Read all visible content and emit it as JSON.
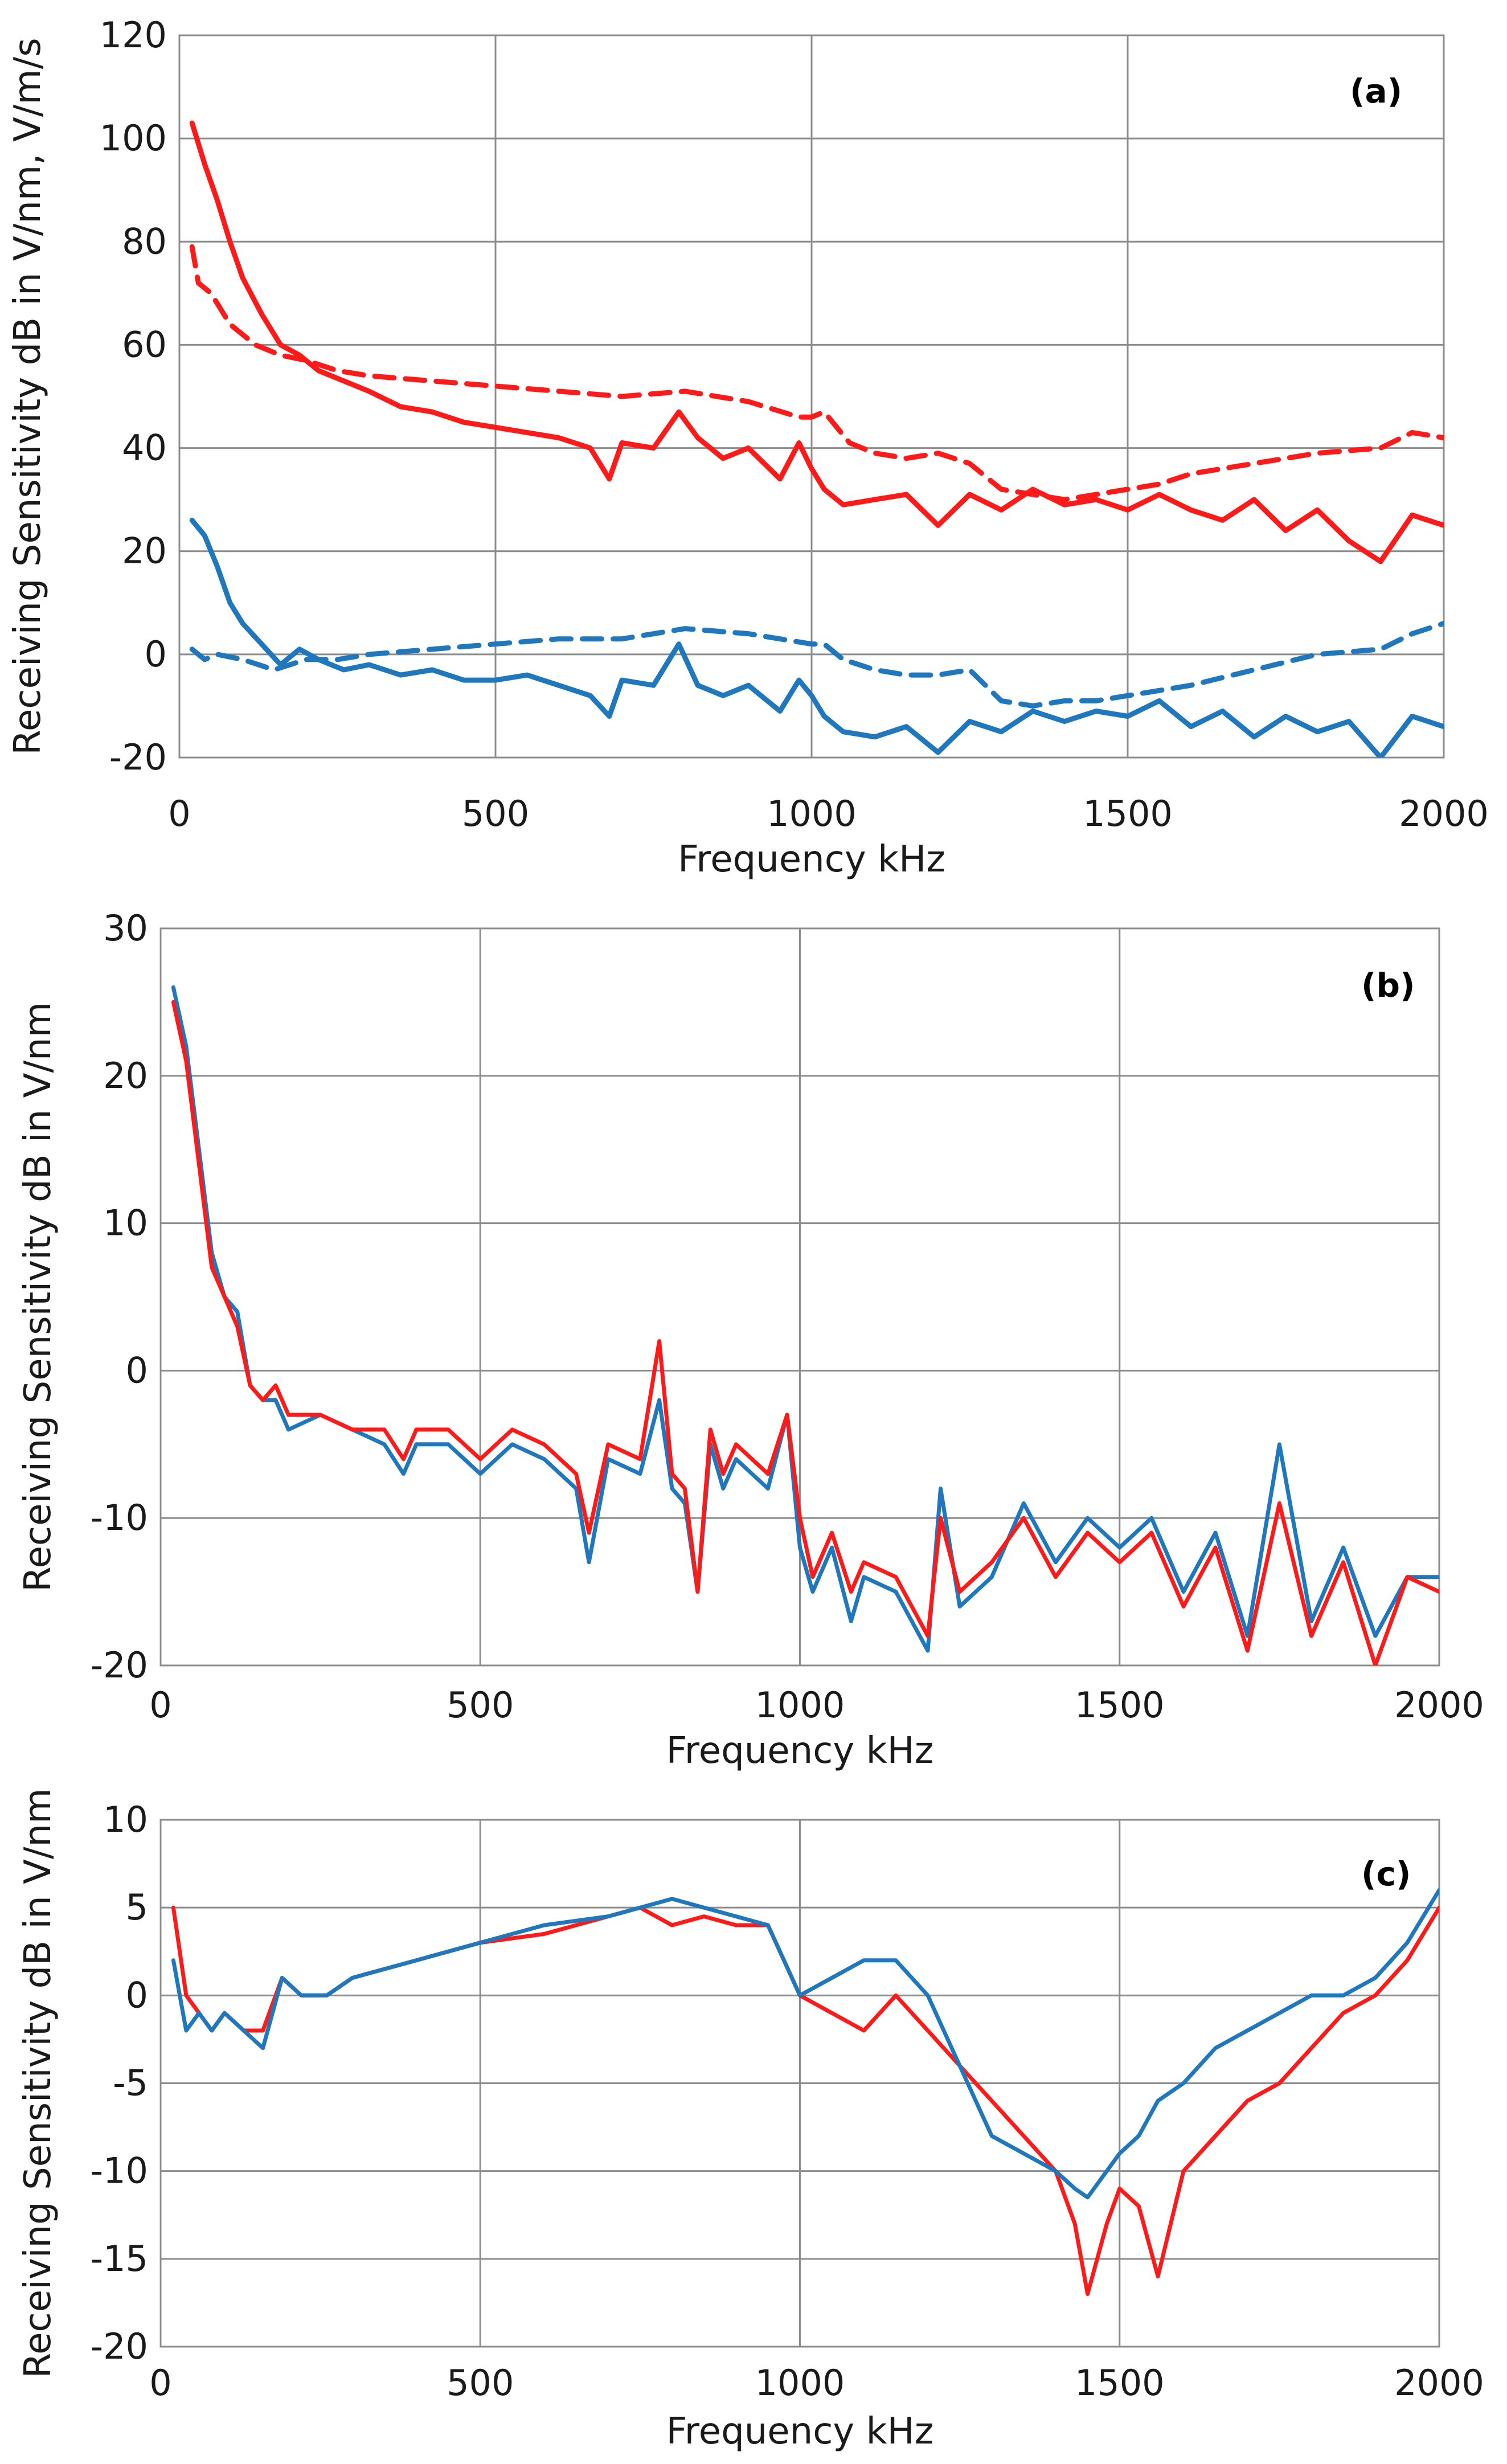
{
  "chart_data": [
    {
      "type": "line",
      "panel_tag": "(a)",
      "xlabel": "Frequency  kHz",
      "ylabel": "Receiving Sensitivity  dB in V/nm, V/m/s",
      "xlim": [
        0,
        2000
      ],
      "ylim": [
        -20,
        120
      ],
      "xticks": [
        0,
        500,
        1000,
        1500,
        2000
      ],
      "yticks": [
        -20,
        0,
        20,
        40,
        60,
        80,
        100,
        120
      ],
      "grid": true,
      "series": [
        {
          "name": "red solid",
          "color": "#ff1a1a",
          "style": "solid",
          "x": [
            20,
            40,
            60,
            80,
            100,
            130,
            160,
            190,
            220,
            260,
            300,
            350,
            400,
            450,
            500,
            550,
            600,
            650,
            680,
            700,
            750,
            790,
            820,
            860,
            900,
            950,
            980,
            1000,
            1020,
            1050,
            1100,
            1150,
            1200,
            1250,
            1300,
            1350,
            1400,
            1450,
            1500,
            1550,
            1600,
            1650,
            1700,
            1750,
            1800,
            1850,
            1900,
            1950,
            2000
          ],
          "y": [
            103,
            95,
            88,
            80,
            73,
            66,
            60,
            58,
            55,
            53,
            51,
            48,
            47,
            45,
            44,
            43,
            42,
            40,
            34,
            41,
            40,
            47,
            42,
            38,
            40,
            34,
            41,
            36,
            32,
            29,
            30,
            31,
            25,
            31,
            28,
            32,
            29,
            30,
            28,
            31,
            28,
            26,
            30,
            24,
            28,
            22,
            18,
            27,
            25
          ]
        },
        {
          "name": "red dashed",
          "color": "#ff1a1a",
          "style": "dashed",
          "x": [
            20,
            30,
            50,
            80,
            120,
            160,
            200,
            250,
            300,
            400,
            500,
            600,
            700,
            800,
            900,
            980,
            1000,
            1020,
            1060,
            1100,
            1150,
            1200,
            1250,
            1300,
            1400,
            1450,
            1500,
            1550,
            1600,
            1700,
            1800,
            1900,
            1950,
            2000
          ],
          "y": [
            79,
            72,
            70,
            64,
            60,
            58,
            57,
            55,
            54,
            53,
            52,
            51,
            50,
            51,
            49,
            46,
            46,
            47,
            41,
            39,
            38,
            39,
            37,
            32,
            30,
            31,
            32,
            33,
            35,
            37,
            39,
            40,
            43,
            42
          ]
        },
        {
          "name": "blue solid",
          "color": "#1f77bd",
          "style": "solid",
          "x": [
            20,
            40,
            60,
            80,
            100,
            130,
            160,
            190,
            220,
            260,
            300,
            350,
            400,
            450,
            500,
            550,
            600,
            650,
            680,
            700,
            750,
            790,
            820,
            860,
            900,
            950,
            980,
            1000,
            1020,
            1050,
            1100,
            1150,
            1200,
            1250,
            1300,
            1350,
            1400,
            1450,
            1500,
            1550,
            1600,
            1650,
            1700,
            1750,
            1800,
            1850,
            1900,
            1950,
            2000
          ],
          "y": [
            26,
            23,
            17,
            10,
            6,
            2,
            -2,
            1,
            -1,
            -3,
            -2,
            -4,
            -3,
            -5,
            -5,
            -4,
            -6,
            -8,
            -12,
            -5,
            -6,
            2,
            -6,
            -8,
            -6,
            -11,
            -5,
            -8,
            -12,
            -15,
            -16,
            -14,
            -19,
            -13,
            -15,
            -11,
            -13,
            -11,
            -12,
            -9,
            -14,
            -11,
            -16,
            -12,
            -15,
            -13,
            -20,
            -12,
            -14
          ]
        },
        {
          "name": "blue dashed",
          "color": "#1f77bd",
          "style": "dashed",
          "x": [
            20,
            40,
            60,
            100,
            150,
            200,
            250,
            300,
            400,
            500,
            600,
            700,
            800,
            900,
            1000,
            1020,
            1050,
            1100,
            1150,
            1200,
            1250,
            1300,
            1350,
            1400,
            1450,
            1500,
            1550,
            1600,
            1700,
            1800,
            1900,
            1950,
            2000
          ],
          "y": [
            1,
            -1,
            0,
            -1,
            -3,
            -1,
            -1,
            0,
            1,
            2,
            3,
            3,
            5,
            4,
            2,
            2,
            -1,
            -3,
            -4,
            -4,
            -3,
            -9,
            -10,
            -9,
            -9,
            -8,
            -7,
            -6,
            -3,
            0,
            1,
            4,
            6
          ]
        }
      ]
    },
    {
      "type": "line",
      "panel_tag": "(b)",
      "xlabel": "Frequency  kHz",
      "ylabel": "Receiving Sensitivity  dB in V/nm",
      "xlim": [
        0,
        2000
      ],
      "ylim": [
        -20,
        30
      ],
      "xticks": [
        0,
        500,
        1000,
        1500,
        2000
      ],
      "yticks": [
        -20,
        -10,
        0,
        10,
        20,
        30
      ],
      "grid": true,
      "series": [
        {
          "name": "blue",
          "color": "#1f77bd",
          "style": "solid",
          "x": [
            20,
            40,
            60,
            80,
            100,
            120,
            140,
            160,
            180,
            200,
            250,
            300,
            350,
            380,
            400,
            450,
            500,
            550,
            600,
            650,
            670,
            700,
            750,
            780,
            800,
            820,
            840,
            860,
            880,
            900,
            950,
            980,
            1000,
            1020,
            1050,
            1080,
            1100,
            1150,
            1200,
            1220,
            1250,
            1300,
            1350,
            1400,
            1450,
            1500,
            1550,
            1600,
            1650,
            1700,
            1750,
            1800,
            1850,
            1900,
            1950,
            2000
          ],
          "y": [
            26,
            22,
            15,
            8,
            5,
            4,
            -1,
            -2,
            -2,
            -4,
            -3,
            -4,
            -5,
            -7,
            -5,
            -5,
            -7,
            -5,
            -6,
            -8,
            -13,
            -6,
            -7,
            -2,
            -8,
            -9,
            -15,
            -5,
            -8,
            -6,
            -8,
            -3,
            -12,
            -15,
            -12,
            -17,
            -14,
            -15,
            -19,
            -8,
            -16,
            -14,
            -9,
            -13,
            -10,
            -12,
            -10,
            -15,
            -11,
            -18,
            -5,
            -17,
            -12,
            -18,
            -14,
            -14
          ]
        },
        {
          "name": "red",
          "color": "#ff1a1a",
          "style": "solid",
          "x": [
            20,
            40,
            60,
            80,
            100,
            120,
            140,
            160,
            180,
            200,
            250,
            300,
            350,
            380,
            400,
            450,
            500,
            550,
            600,
            650,
            670,
            700,
            750,
            780,
            800,
            820,
            840,
            860,
            880,
            900,
            950,
            980,
            1000,
            1020,
            1050,
            1080,
            1100,
            1150,
            1200,
            1220,
            1250,
            1300,
            1350,
            1400,
            1450,
            1500,
            1550,
            1600,
            1650,
            1700,
            1750,
            1800,
            1850,
            1900,
            1950,
            2000
          ],
          "y": [
            25,
            21,
            14,
            7,
            5,
            3,
            -1,
            -2,
            -1,
            -3,
            -3,
            -4,
            -4,
            -6,
            -4,
            -4,
            -6,
            -4,
            -5,
            -7,
            -11,
            -5,
            -6,
            2,
            -7,
            -8,
            -15,
            -4,
            -7,
            -5,
            -7,
            -3,
            -10,
            -14,
            -11,
            -15,
            -13,
            -14,
            -18,
            -10,
            -15,
            -13,
            -10,
            -14,
            -11,
            -13,
            -11,
            -16,
            -12,
            -19,
            -9,
            -18,
            -13,
            -20,
            -14,
            -15
          ]
        }
      ]
    },
    {
      "type": "line",
      "panel_tag": "(c)",
      "xlabel": "Frequency  kHz",
      "ylabel": "Receiving Sensitivity  dB in V/nm",
      "xlim": [
        0,
        2000
      ],
      "ylim": [
        -20,
        10
      ],
      "xticks": [
        0,
        500,
        1000,
        1500,
        2000
      ],
      "yticks": [
        -20,
        -15,
        -10,
        -5,
        0,
        5,
        10
      ],
      "grid": true,
      "series": [
        {
          "name": "red",
          "color": "#ff1a1a",
          "style": "solid",
          "x": [
            20,
            40,
            60,
            80,
            100,
            130,
            160,
            190,
            220,
            260,
            300,
            400,
            500,
            600,
            700,
            750,
            800,
            850,
            900,
            950,
            1000,
            1050,
            1100,
            1150,
            1200,
            1250,
            1300,
            1350,
            1400,
            1430,
            1450,
            1480,
            1500,
            1530,
            1560,
            1600,
            1650,
            1700,
            1750,
            1800,
            1850,
            1900,
            1950,
            2000
          ],
          "y": [
            5,
            0,
            -1,
            -2,
            -1,
            -2,
            -2,
            1,
            0,
            0,
            1,
            2,
            3,
            3.5,
            4.5,
            5,
            4,
            4.5,
            4,
            4,
            0,
            -1,
            -2,
            0,
            -2,
            -4,
            -6,
            -8,
            -10,
            -13,
            -17,
            -13,
            -11,
            -12,
            -16,
            -10,
            -8,
            -6,
            -5,
            -3,
            -1,
            0,
            2,
            5
          ]
        },
        {
          "name": "blue",
          "color": "#1f77bd",
          "style": "solid",
          "x": [
            20,
            40,
            60,
            80,
            100,
            130,
            160,
            190,
            220,
            260,
            300,
            400,
            500,
            600,
            700,
            750,
            800,
            850,
            900,
            950,
            1000,
            1050,
            1100,
            1150,
            1200,
            1250,
            1300,
            1350,
            1400,
            1430,
            1450,
            1480,
            1500,
            1530,
            1560,
            1600,
            1650,
            1700,
            1750,
            1800,
            1850,
            1900,
            1950,
            2000
          ],
          "y": [
            2,
            -2,
            -1,
            -2,
            -1,
            -2,
            -3,
            1,
            0,
            0,
            1,
            2,
            3,
            4,
            4.5,
            5,
            5.5,
            5,
            4.5,
            4,
            0,
            1,
            2,
            2,
            0,
            -4,
            -8,
            -9,
            -10,
            -11,
            -11.5,
            -10,
            -9,
            -8,
            -6,
            -5,
            -3,
            -2,
            -1,
            0,
            0,
            1,
            3,
            6
          ]
        }
      ]
    }
  ]
}
